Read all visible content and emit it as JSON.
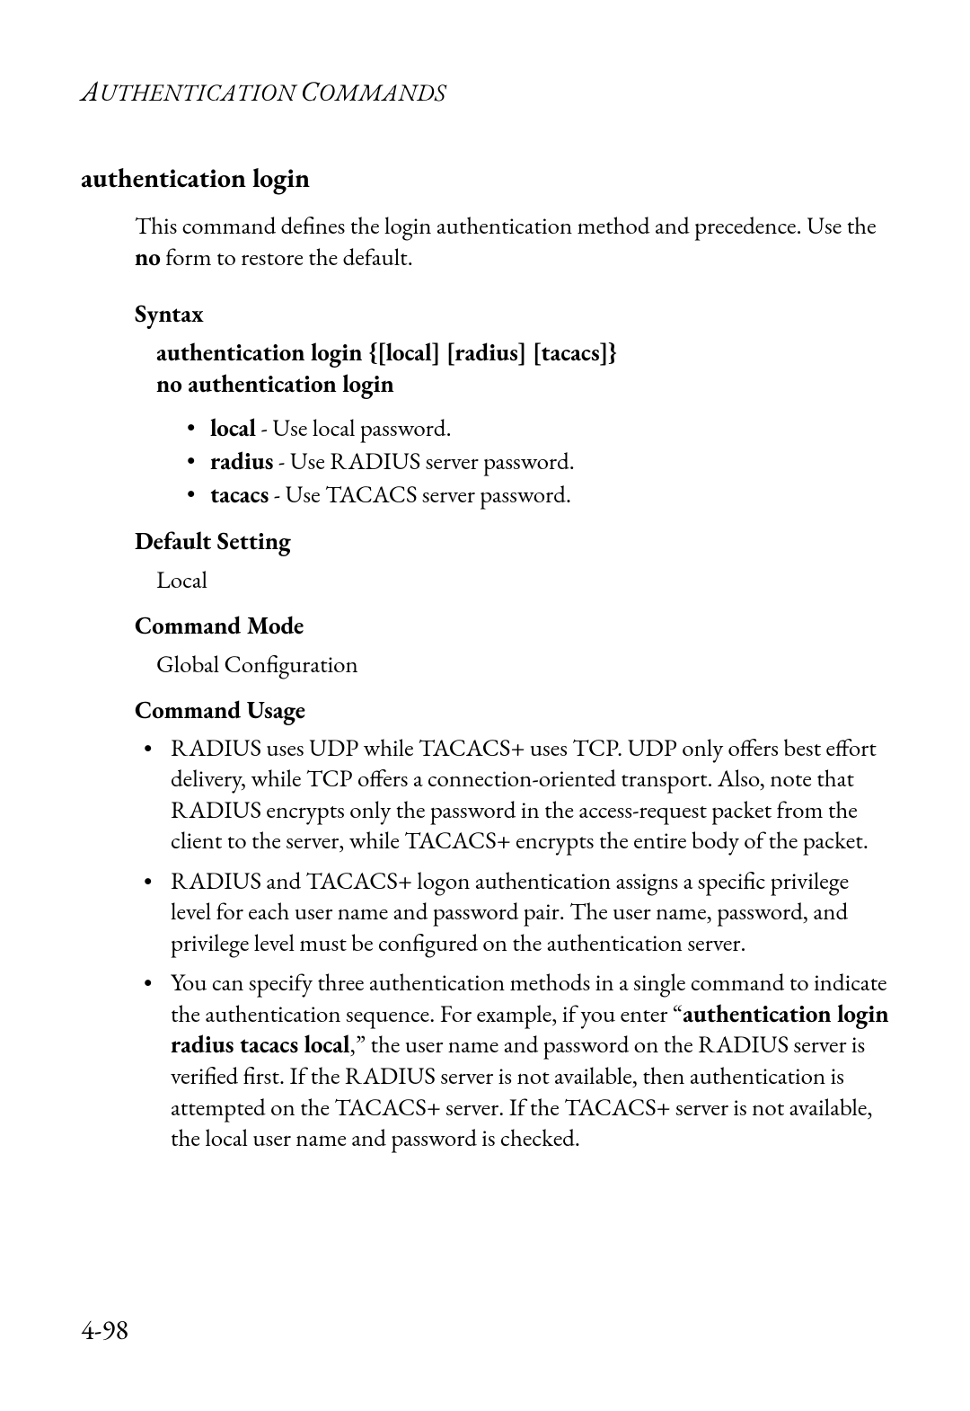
{
  "header": {
    "text_caps": [
      "A",
      "C"
    ],
    "text_parts": [
      "UTHENTICATION ",
      "OMMANDS"
    ]
  },
  "title": "authentication login",
  "intro": {
    "pre": "This command defines the login authentication method and precedence. Use the ",
    "bold": "no",
    "post": " form to restore the default."
  },
  "syntax": {
    "heading": "Syntax",
    "line1_bold": "authentication login",
    "line1_rest": " {[local] [radius] [tacacs]}",
    "line2_bold": "no authentication login",
    "options": [
      {
        "term": "local",
        "desc": " - Use local password."
      },
      {
        "term": "radius",
        "desc": " - Use RADIUS server password."
      },
      {
        "term": "tacacs",
        "desc": " - Use TACACS server password."
      }
    ]
  },
  "default_setting": {
    "heading": "Default Setting",
    "value": "Local"
  },
  "command_mode": {
    "heading": "Command Mode",
    "value": "Global Configuration"
  },
  "command_usage": {
    "heading": "Command Usage",
    "items": [
      {
        "pre": "RADIUS uses UDP while TACACS+ uses TCP. UDP only offers best effort delivery, while TCP offers a connection-oriented transport. Also, note that RADIUS encrypts only the password in the access-request packet from the client to the server, while TACACS+ encrypts the entire body of the packet.",
        "bold": "",
        "post": ""
      },
      {
        "pre": "RADIUS and TACACS+ logon authentication assigns a specific privilege level for each user name and password pair. The user name, password, and privilege level must be configured on the authentication server.",
        "bold": "",
        "post": ""
      },
      {
        "pre": "You can specify three authentication methods in a single command to indicate the authentication sequence. For example, if you enter “",
        "bold": "authentication login radius tacacs local",
        "post": ",” the user name and password on the RADIUS server is verified first. If the RADIUS server is not available, then authentication is attempted on the TACACS+ server. If the TACACS+ server is not available, the local user name and password is checked."
      }
    ]
  },
  "page_number": "4-98"
}
